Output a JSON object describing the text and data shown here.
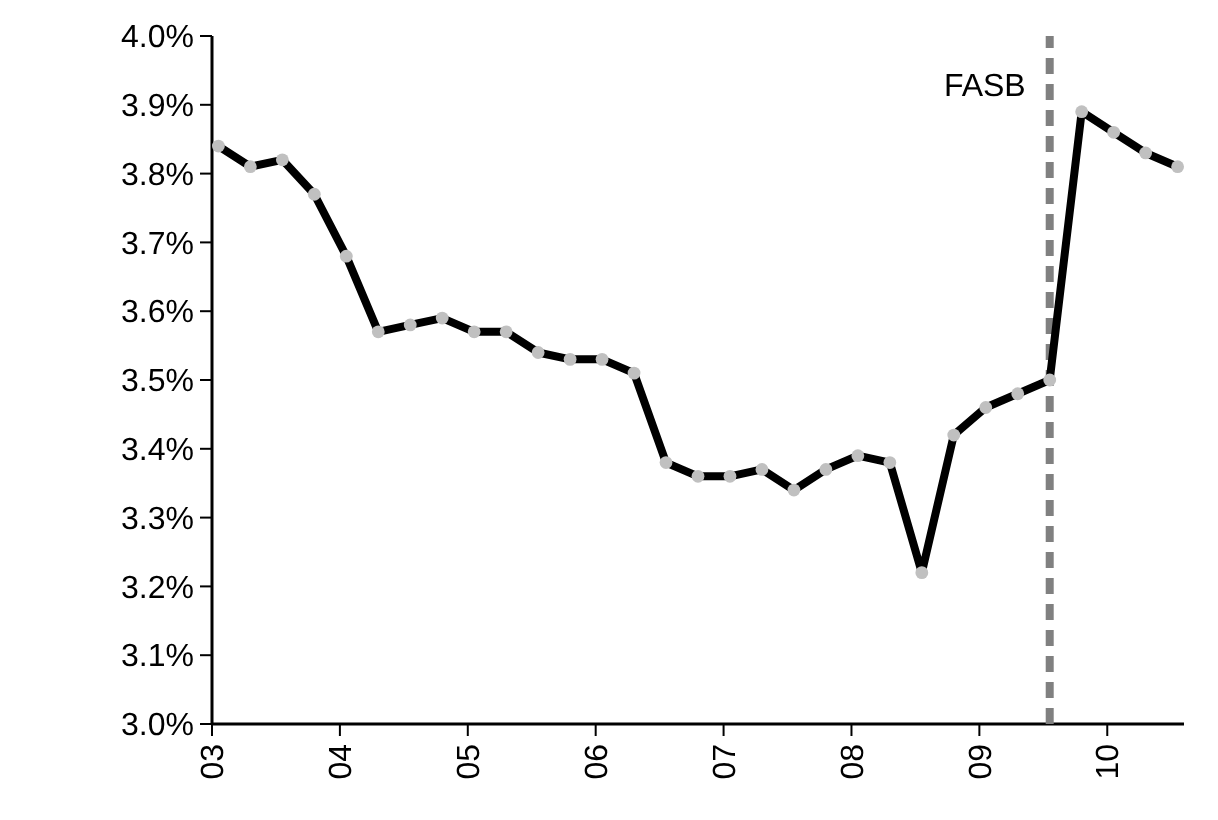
{
  "chart_data": {
    "type": "line",
    "x": [
      2003.05,
      2003.3,
      2003.55,
      2003.8,
      2004.05,
      2004.3,
      2004.55,
      2004.8,
      2005.05,
      2005.3,
      2005.55,
      2005.8,
      2006.05,
      2006.3,
      2006.55,
      2006.8,
      2007.05,
      2007.3,
      2007.55,
      2007.8,
      2008.05,
      2008.3,
      2008.55,
      2008.8,
      2009.05,
      2009.3,
      2009.55,
      2009.8,
      2010.05,
      2010.3,
      2010.55
    ],
    "series": [
      {
        "color": "#000000",
        "values": [
          3.84,
          3.81,
          3.82,
          3.77,
          3.68,
          3.57,
          3.58,
          3.59,
          3.57,
          3.57,
          3.54,
          3.53,
          3.53,
          3.51,
          3.38,
          3.36,
          3.36,
          3.37,
          3.34,
          3.37,
          3.39,
          3.38,
          3.22,
          3.42,
          3.46,
          3.48,
          3.5,
          3.89,
          3.86,
          3.83,
          3.81
        ]
      }
    ],
    "marker": "circle",
    "line_style": "solid",
    "xlim": [
      2003,
      2010.6
    ],
    "xticks": [
      {
        "value": 2003,
        "label": "03"
      },
      {
        "value": 2004,
        "label": "04"
      },
      {
        "value": 2005,
        "label": "05"
      },
      {
        "value": 2006,
        "label": "06"
      },
      {
        "value": 2007,
        "label": "07"
      },
      {
        "value": 2008,
        "label": "08"
      },
      {
        "value": 2009,
        "label": "09"
      },
      {
        "value": 2010,
        "label": "10"
      }
    ],
    "ylim": [
      3.0,
      4.0
    ],
    "yticks": [
      {
        "value": 3.0,
        "label": "3.0%"
      },
      {
        "value": 3.1,
        "label": "3.1%"
      },
      {
        "value": 3.2,
        "label": "3.2%"
      },
      {
        "value": 3.3,
        "label": "3.3%"
      },
      {
        "value": 3.4,
        "label": "3.4%"
      },
      {
        "value": 3.5,
        "label": "3.5%"
      },
      {
        "value": 3.6,
        "label": "3.6%"
      },
      {
        "value": 3.7,
        "label": "3.7%"
      },
      {
        "value": 3.8,
        "label": "3.8%"
      },
      {
        "value": 3.9,
        "label": "3.9%"
      },
      {
        "value": 4.0,
        "label": "4.0%"
      }
    ],
    "ref_lines": [
      {
        "axis": "x",
        "value": 2009.55,
        "label": "FASB",
        "color": "#808080",
        "line_style": "dashed"
      }
    ],
    "grid": false
  }
}
